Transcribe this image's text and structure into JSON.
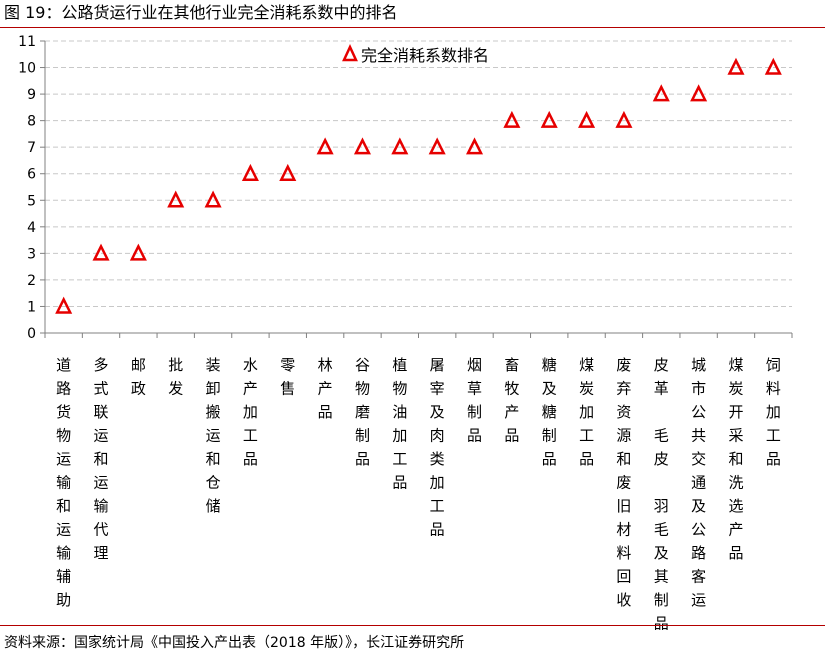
{
  "figure": {
    "title": "图 19：公路货运行业在其他行业完全消耗系数中的排名",
    "source": "资料来源：国家统计局《中国投入产出表（2018 年版）》，长江证券研究所"
  },
  "colors": {
    "accent": "#b40000",
    "marker": "#e60000",
    "grid": "#c8c8c8",
    "axis": "#808080"
  },
  "chart_data": {
    "type": "scatter",
    "marker": "triangle-open",
    "categories": [
      "道路货物运输和运输辅助",
      "多式联运和运输代理",
      "邮政",
      "批发",
      "装卸搬运和仓储",
      "水产加工品",
      "零售",
      "林产品",
      "谷物磨制品",
      "植物油加工品",
      "屠宰及肉类加工品",
      "烟草制品",
      "畜牧产品",
      "糖及糖制品",
      "煤炭加工品",
      "废弃资源和废旧材料回收",
      "皮革、毛皮、羽毛及其制品",
      "城市公共交通及公路客运",
      "煤炭开采和洗选产品",
      "饲料加工品"
    ],
    "category_labels": [
      "道路货物运输和运输辅助",
      "多式联运和运输代理",
      "邮政",
      "批发",
      "装卸搬运和仓储",
      "水产加工品",
      "零售",
      "林产品",
      "谷物磨制品",
      "植物油加工品",
      "屠宰及肉类加工品",
      "烟草制品",
      "畜牧产品",
      "糖及糖制品",
      "煤炭加工品",
      "废弃资源和废旧材料回收",
      "皮革 毛皮 羽毛及其制品",
      "城市公共交通及公路客运",
      "煤炭开采和洗选产品",
      "饲料加工品"
    ],
    "series": [
      {
        "name": "完全消耗系数排名",
        "values": [
          1,
          3,
          3,
          5,
          5,
          6,
          6,
          7,
          7,
          7,
          7,
          7,
          8,
          8,
          8,
          8,
          9,
          9,
          10,
          10
        ]
      }
    ],
    "ylim": [
      0,
      11
    ],
    "yticks": [
      "0",
      "1",
      "2",
      "3",
      "4",
      "5",
      "6",
      "7",
      "8",
      "9",
      "10",
      "11"
    ],
    "grid": "horizontal-dashed",
    "legend": "top-center"
  }
}
